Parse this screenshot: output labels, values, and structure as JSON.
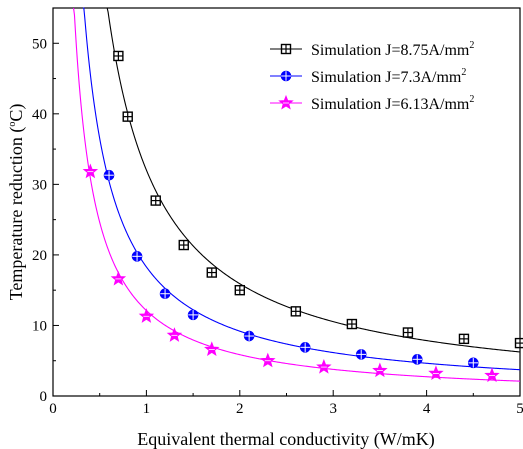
{
  "chart_data": {
    "type": "line",
    "title": "",
    "xlabel": "Equivalent thermal conductivity (W/mK)",
    "ylabel_main": "Temperature reduction (",
    "ylabel_sup": "o",
    "ylabel_end": "C)",
    "xlim": [
      0,
      5
    ],
    "ylim": [
      0,
      55
    ],
    "x_ticks": [
      0,
      1,
      2,
      3,
      4,
      5
    ],
    "y_ticks": [
      0,
      10,
      20,
      30,
      40,
      50
    ],
    "x_tick_labels": [
      "0",
      "1",
      "2",
      "3",
      "4",
      "5"
    ],
    "y_tick_labels": [
      "0",
      "10",
      "20",
      "30",
      "40",
      "50"
    ],
    "legend_position": "top-right",
    "series": [
      {
        "name_main": "Simulation J=8.75A/mm",
        "name_sup": "2",
        "color": "#000000",
        "marker": "square-cross",
        "points": [
          [
            0.7,
            48.2
          ],
          [
            0.8,
            39.6
          ],
          [
            1.1,
            27.7
          ],
          [
            1.4,
            21.4
          ],
          [
            1.7,
            17.5
          ],
          [
            2.0,
            15.0
          ],
          [
            2.6,
            12.0
          ],
          [
            3.2,
            10.2
          ],
          [
            3.8,
            9.0
          ],
          [
            4.4,
            8.1
          ],
          [
            5.0,
            7.5
          ]
        ]
      },
      {
        "name_main": "Simulation J=7.3A/mm",
        "name_sup": "2",
        "color": "#0000ff",
        "marker": "circle-cross",
        "points": [
          [
            0.6,
            31.3
          ],
          [
            0.9,
            19.8
          ],
          [
            1.2,
            14.5
          ],
          [
            1.5,
            11.5
          ],
          [
            2.1,
            8.5
          ],
          [
            2.7,
            6.9
          ],
          [
            3.3,
            5.9
          ],
          [
            3.9,
            5.2
          ],
          [
            4.5,
            4.7
          ]
        ]
      },
      {
        "name_main": "Simulation J=6.13A/mm",
        "name_sup": "2",
        "color": "#ff00ff",
        "marker": "star",
        "points": [
          [
            0.4,
            31.8
          ],
          [
            0.7,
            16.6
          ],
          [
            1.0,
            11.3
          ],
          [
            1.3,
            8.6
          ],
          [
            1.7,
            6.6
          ],
          [
            2.3,
            5.0
          ],
          [
            2.9,
            4.1
          ],
          [
            3.5,
            3.6
          ],
          [
            4.1,
            3.2
          ],
          [
            4.7,
            2.9
          ]
        ]
      }
    ]
  }
}
